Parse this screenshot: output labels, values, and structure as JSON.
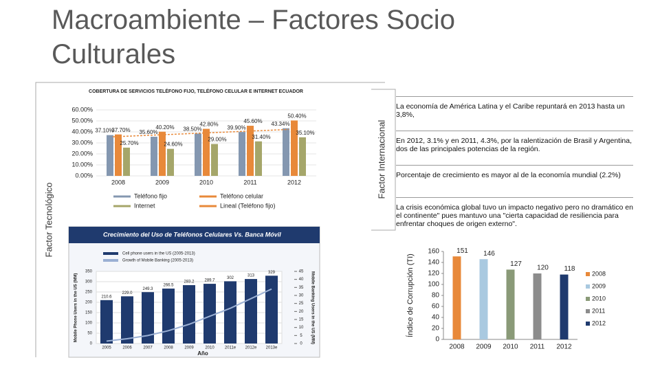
{
  "header": {
    "title": "Macroambiente – Factores Socio Culturales"
  },
  "left": {
    "label": "Factor Tecnológico"
  },
  "right": {
    "label": "Factor Internacional",
    "bullets": [
      "La economía de América Latina y el Caribe repuntará en 2013 hasta un 3,8%,",
      "En 2012, 3.1% y en 2011, 4.3%, por la ralentización de Brasil y Argentina, dos de las principales potencias de la región.",
      "Porcentaje de crecimiento es mayor al de la economía mundial (2.2%)",
      "La crisis económica global tuvo un impacto negativo pero no dramático en el continente\" pues mantuvo una \"cierta capacidad de resiliencia para enfrentar choques de origen externo\"."
    ]
  },
  "chart_data": [
    {
      "type": "bar",
      "title": "COBERTURA DE SERVICIOS TELÉFONO FIJO, TELÉFONO CELULAR E INTERNET ECUADOR",
      "categories": [
        "2008",
        "2009",
        "2010",
        "2011",
        "2012"
      ],
      "series": [
        {
          "name": "Teléfono fijo",
          "color": "#8497b0",
          "values": [
            37.1,
            35.6,
            38.5,
            39.9,
            43.34
          ],
          "value_labels": [
            "37.10%",
            "35.60%",
            "38.50%",
            "39.90%",
            "43.34%"
          ]
        },
        {
          "name": "Teléfono celular",
          "color": "#e8893a",
          "values": [
            37.7,
            40.2,
            42.8,
            45.6,
            50.4
          ],
          "value_labels": [
            "37.70%",
            "40.20%",
            "42.80%",
            "45.60%",
            "50.40%"
          ]
        },
        {
          "name": "Internet",
          "color": "#a5a66a",
          "values": [
            25.7,
            24.6,
            29.0,
            31.4,
            35.1
          ],
          "value_labels": [
            "25.70%",
            "24.60%",
            "29.00%",
            "31.40%",
            "35.10%"
          ]
        }
      ],
      "trendline_name": "Lineal (Teléfono fijo)",
      "trendline_color": "#e8893a",
      "ylim": [
        0,
        60
      ],
      "yticks": [
        {
          "value": 0,
          "label": "0.00%"
        },
        {
          "value": 10,
          "label": "10.00%"
        },
        {
          "value": 20,
          "label": "20.00%"
        },
        {
          "value": 30,
          "label": "30.00%"
        },
        {
          "value": 40,
          "label": "40.00%"
        },
        {
          "value": 50,
          "label": "50.00%"
        },
        {
          "value": 60,
          "label": "60.00%"
        }
      ]
    },
    {
      "type": "bar",
      "title": "Crecimiento del Uso de Teléfonos Celulares Vs. Banca Móvil",
      "categories": [
        "2005",
        "2006",
        "2007",
        "2008",
        "2009",
        "2010",
        "2011e",
        "2012e",
        "2013e"
      ],
      "series": [
        {
          "name": "Cell phone users in the US (2005-2013)",
          "color": "#1f3a6e",
          "values": [
            210.6,
            229,
            249.3,
            266.5,
            283.2,
            289.7,
            302,
            313,
            329
          ],
          "value_labels": [
            "210.6",
            "229.0",
            "249.3",
            "266.5",
            "283.2",
            "289.7",
            "302",
            "313",
            "329"
          ]
        },
        {
          "name": "Growth of Mobile Banking (2005-2013)",
          "color": "#9bb0d4",
          "axis": "y2",
          "values": [
            1.5,
            3,
            5,
            8,
            12,
            17,
            22,
            28,
            34
          ]
        }
      ],
      "xlabel": "Año",
      "ylabel": "Mobile Phone Users in the US (MM)",
      "y2label": "Mobile Banking Users in the US (MM)",
      "ylim": [
        0,
        350
      ],
      "yticks": [
        0,
        50,
        100,
        150,
        200,
        250,
        300,
        350
      ],
      "y2lim": [
        0,
        45
      ],
      "y2ticks": [
        0,
        5,
        10,
        15,
        20,
        25,
        30,
        35,
        40,
        45
      ]
    },
    {
      "type": "bar",
      "ylabel": "Índice de Corrupción (TI)",
      "categories": [
        "2008",
        "2009",
        "2010",
        "2011",
        "2012"
      ],
      "values": [
        151,
        146,
        127,
        120,
        118
      ],
      "colors": [
        "#e8893a",
        "#a9c9e0",
        "#8a9a78",
        "#8c8c8c",
        "#1f3a6e"
      ],
      "ylim": [
        0,
        160
      ],
      "yticks": [
        0,
        20,
        40,
        60,
        80,
        100,
        120,
        140,
        160
      ]
    }
  ]
}
